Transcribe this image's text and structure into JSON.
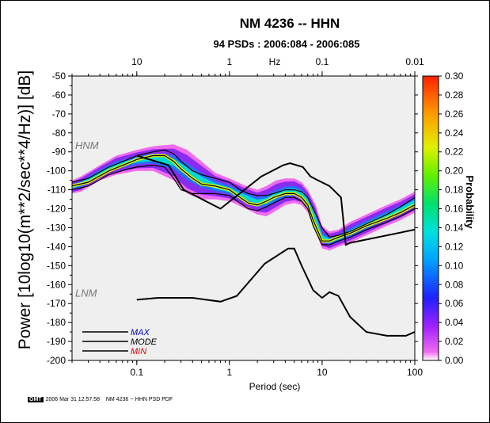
{
  "chart_data": {
    "type": "heatmap",
    "title": "NM 4236 -- HHN",
    "subtitle": "94 PSDs : 2006:084 - 2006:085",
    "xlabel": "Period (sec)",
    "ylabel": "Power [10log10(m**2/sec**4/Hz)] [dB]",
    "top_axis_label": "Hz",
    "x_scale": "log",
    "xlim": [
      0.02,
      100
    ],
    "ylim": [
      -200,
      -50
    ],
    "x_ticks": [
      {
        "value": 0.1,
        "label": "0.1"
      },
      {
        "value": 1,
        "label": "1"
      },
      {
        "value": 10,
        "label": "10"
      },
      {
        "value": 100,
        "label": "100"
      }
    ],
    "top_ticks": [
      {
        "value": 0.1,
        "label": "10"
      },
      {
        "value": 1,
        "label": "1"
      },
      {
        "value": 10,
        "label": "0.1"
      },
      {
        "value": 100,
        "label": "0.01"
      }
    ],
    "y_ticks": [
      -50,
      -60,
      -70,
      -80,
      -90,
      -100,
      -110,
      -120,
      -130,
      -140,
      -150,
      -160,
      -170,
      -180,
      -190,
      -200
    ],
    "colorbar": {
      "label": "Probability",
      "range": [
        0,
        0.3
      ],
      "ticks": [
        "0.00",
        "0.02",
        "0.04",
        "0.06",
        "0.08",
        "0.10",
        "0.12",
        "0.14",
        "0.16",
        "0.18",
        "0.20",
        "0.22",
        "0.24",
        "0.26",
        "0.28",
        "0.30"
      ]
    },
    "band_upper": {
      "x": [
        0.02,
        0.025,
        0.04,
        0.06,
        0.1,
        0.15,
        0.25,
        0.35,
        0.5,
        0.7,
        1.0,
        1.5,
        2.0,
        2.5,
        3.2,
        4.0,
        5.0,
        6.0,
        7.0,
        8.5,
        10,
        12,
        15,
        20,
        30,
        50,
        70,
        100
      ],
      "y": [
        -105,
        -103,
        -97,
        -92,
        -89,
        -87,
        -86,
        -89,
        -95,
        -101,
        -104,
        -108,
        -110,
        -108,
        -105,
        -104,
        -104,
        -106,
        -110,
        -118,
        -129,
        -132,
        -131,
        -127,
        -123,
        -118,
        -115,
        -111
      ]
    },
    "band_lower": {
      "x": [
        0.02,
        0.025,
        0.04,
        0.06,
        0.1,
        0.15,
        0.25,
        0.35,
        0.5,
        0.7,
        1.0,
        1.5,
        2.0,
        2.5,
        3.2,
        4.0,
        5.0,
        6.0,
        7.0,
        8.5,
        10,
        12,
        15,
        20,
        30,
        50,
        70,
        100
      ],
      "y": [
        -112,
        -111,
        -105,
        -102,
        -100,
        -100,
        -105,
        -112,
        -115,
        -115,
        -116,
        -120,
        -123,
        -124,
        -121,
        -118,
        -117,
        -118,
        -122,
        -132,
        -141,
        -142,
        -140,
        -138,
        -134,
        -129,
        -126,
        -122
      ]
    },
    "series": [
      {
        "name": "MAX",
        "color": "#0000cc",
        "x": [
          0.02,
          0.03,
          0.05,
          0.08,
          0.1,
          0.15,
          0.2,
          0.25,
          0.3,
          0.4,
          0.5,
          0.7,
          1.0,
          1.3,
          1.6,
          2.0,
          2.5,
          3.0,
          4.0,
          5.0,
          6.0,
          7.0,
          8.0,
          10,
          12,
          15,
          20,
          30,
          50,
          70,
          100
        ],
        "y": [
          -106,
          -104,
          -98,
          -94,
          -92,
          -90,
          -89,
          -91,
          -95,
          -100,
          -102,
          -104,
          -106,
          -110,
          -112,
          -113,
          -113,
          -112,
          -110,
          -110,
          -111,
          -114,
          -120,
          -130,
          -135,
          -134,
          -132,
          -128,
          -123,
          -119,
          -114
        ]
      },
      {
        "name": "MODE",
        "color": "#000000",
        "x": [
          0.02,
          0.03,
          0.05,
          0.08,
          0.1,
          0.15,
          0.2,
          0.25,
          0.3,
          0.4,
          0.5,
          0.7,
          1.0,
          1.3,
          1.6,
          2.0,
          2.5,
          3.0,
          4.0,
          5.0,
          6.0,
          7.0,
          8.0,
          10,
          12,
          15,
          20,
          30,
          50,
          70,
          100
        ],
        "y": [
          -108,
          -106,
          -100,
          -96,
          -94,
          -92,
          -92,
          -95,
          -99,
          -104,
          -107,
          -108,
          -110,
          -114,
          -117,
          -118,
          -116,
          -114,
          -112,
          -112,
          -114,
          -118,
          -126,
          -137,
          -137,
          -135,
          -133,
          -129,
          -125,
          -122,
          -118
        ]
      },
      {
        "name": "MIN",
        "color": "#dd0000",
        "x": [
          0.02,
          0.03,
          0.05,
          0.08,
          0.1,
          0.15,
          0.2,
          0.25,
          0.3,
          0.4,
          0.5,
          0.7,
          1.0,
          1.3,
          1.6,
          2.0,
          2.5,
          3.0,
          4.0,
          5.0,
          6.0,
          7.0,
          8.0,
          10,
          12,
          15,
          20,
          30,
          50,
          70,
          100
        ],
        "y": [
          -110,
          -108,
          -102,
          -99,
          -98,
          -97,
          -98,
          -104,
          -110,
          -112,
          -112,
          -112,
          -113,
          -117,
          -120,
          -121,
          -119,
          -117,
          -114,
          -114,
          -116,
          -120,
          -129,
          -139,
          -139,
          -137,
          -135,
          -131,
          -127,
          -124,
          -120
        ]
      }
    ],
    "nhnm": {
      "name": "HNM",
      "x": [
        0.1,
        0.22,
        0.32,
        0.8,
        2.2,
        3.8,
        4.5,
        6.2,
        7.5,
        9.0,
        12,
        16,
        18,
        20,
        100
      ],
      "y": [
        -92,
        -97,
        -110,
        -120,
        -103,
        -97,
        -96,
        -98,
        -103,
        -105,
        -108,
        -114,
        -139,
        -138,
        -131
      ]
    },
    "nlnm": {
      "name": "LNM",
      "x": [
        0.1,
        0.17,
        0.4,
        0.8,
        1.2,
        2.4,
        4.3,
        5.0,
        6.0,
        8.0,
        10,
        12,
        15,
        20,
        30,
        50,
        80,
        100
      ],
      "y": [
        -168,
        -167,
        -167,
        -169,
        -166,
        -149,
        -141,
        -141,
        -150,
        -163,
        -167,
        -164,
        -166,
        -177,
        -185,
        -187,
        -187,
        -185
      ]
    },
    "legend": {
      "position": "bottom-left",
      "entries": [
        {
          "label": "MAX",
          "color": "#0000cc"
        },
        {
          "label": "MODE",
          "color": "#000000"
        },
        {
          "label": "MIN",
          "color": "#dd0000"
        }
      ]
    }
  },
  "footer": {
    "badge": "GMT",
    "timestamp": "2006 Mar 31 12:57:58",
    "caption": "NM 4236 -- HHN PSD PDF"
  }
}
